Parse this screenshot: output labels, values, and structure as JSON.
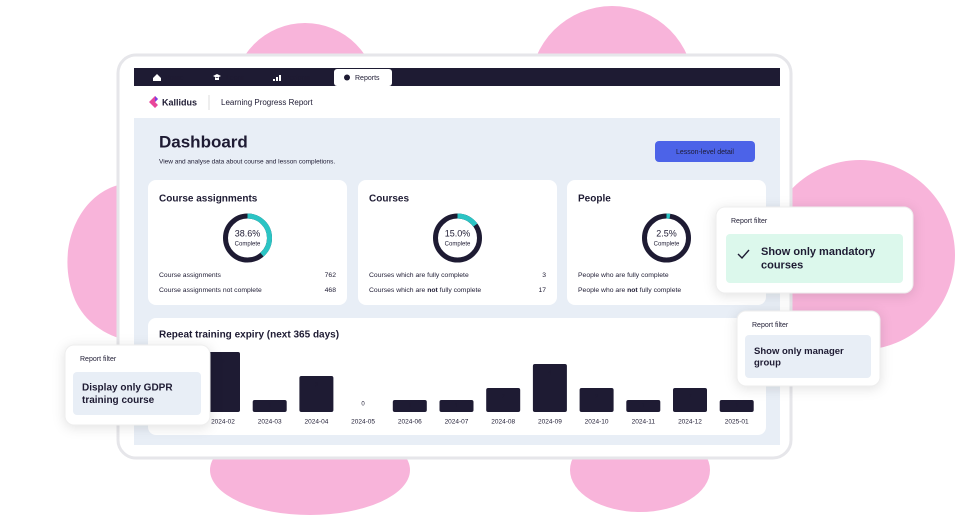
{
  "nav": {
    "tabs": [
      "Home",
      "Learn",
      "Perform",
      "Reports"
    ]
  },
  "header": {
    "brand": "Kallidus",
    "title": "Learning Progress Report"
  },
  "dashboard": {
    "title": "Dashboard",
    "subtitle": "View and analyse data about course and lesson completions.",
    "button": "Lesson-level detail"
  },
  "cards": [
    {
      "title": "Course assignments",
      "percent": 38.6,
      "percent_label": "38.6%",
      "percent_caption": "Complete",
      "rows": [
        {
          "label": [
            "Course assignments"
          ],
          "value": 762
        },
        {
          "label": [
            "Course assignments not complete"
          ],
          "value": 468
        }
      ]
    },
    {
      "title": "Courses",
      "percent": 15.0,
      "percent_label": "15.0%",
      "percent_caption": "Complete",
      "rows": [
        {
          "label": [
            "Courses which are fully complete"
          ],
          "value": 3
        },
        {
          "label": [
            "Courses which are ",
            "not",
            " fully complete"
          ],
          "value": 17
        }
      ]
    },
    {
      "title": "People",
      "percent": 2.5,
      "percent_label": "2.5%",
      "percent_caption": "Complete",
      "rows": [
        {
          "label": [
            "People who are fully complete"
          ]
        },
        {
          "label": [
            "People who are ",
            "not",
            " fully complete"
          ]
        }
      ]
    }
  ],
  "chart_data": {
    "type": "bar",
    "title": "Repeat training expiry (next 365 days)",
    "categories": [
      "2024-02",
      "2024-03",
      "2024-04",
      "2024-05",
      "2024-06",
      "2024-07",
      "2024-08",
      "2024-09",
      "2024-10",
      "2024-11",
      "2024-12",
      "2025-01"
    ],
    "values": [
      5,
      1,
      3,
      0,
      1,
      1,
      2,
      4,
      2,
      1,
      2,
      1
    ],
    "color": "#1e1b33"
  },
  "filters": [
    {
      "heading": "Report filter",
      "option": "Show only mandatory courses",
      "checked": true
    },
    {
      "heading": "Report filter",
      "option": "Show only manager group"
    },
    {
      "heading": "Report filter",
      "option": "Display only GDPR training course"
    }
  ]
}
